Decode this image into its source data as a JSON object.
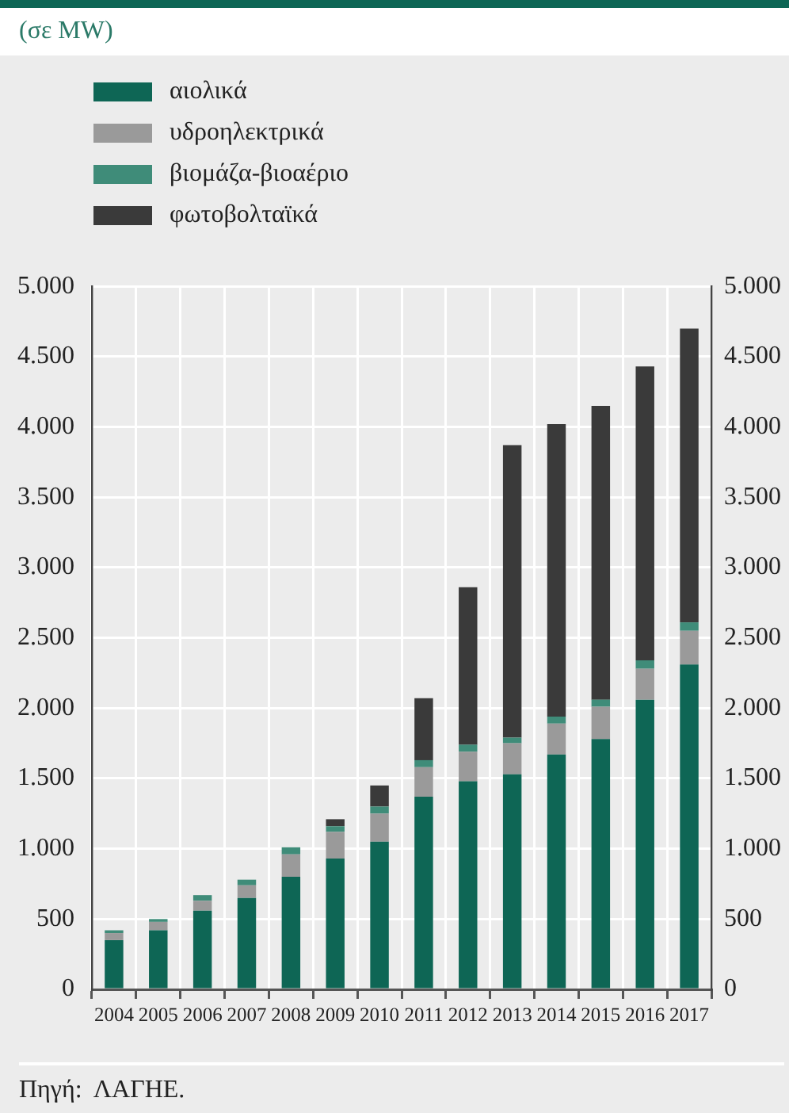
{
  "chart_data": {
    "type": "bar",
    "subtitle": "(σε MW)",
    "categories": [
      "2004",
      "2005",
      "2006",
      "2007",
      "2008",
      "2009",
      "2010",
      "2011",
      "2012",
      "2013",
      "2014",
      "2015",
      "2016",
      "2017"
    ],
    "series": [
      {
        "name": "αιολικά",
        "color": "#0e6655",
        "values": [
          350,
          420,
          560,
          650,
          800,
          930,
          1050,
          1370,
          1480,
          1530,
          1670,
          1780,
          2060,
          2310
        ]
      },
      {
        "name": "υδροηλεκτρικά",
        "color": "#9a9a9a",
        "values": [
          50,
          60,
          70,
          90,
          160,
          190,
          200,
          210,
          210,
          220,
          220,
          230,
          220,
          240
        ]
      },
      {
        "name": "βιομάζα-βιοαέριο",
        "color": "#3f8c79",
        "values": [
          20,
          20,
          40,
          40,
          50,
          40,
          50,
          50,
          50,
          40,
          50,
          50,
          60,
          60
        ]
      },
      {
        "name": "φωτοβολταϊκά",
        "color": "#3a3a3a",
        "values": [
          0,
          0,
          0,
          0,
          0,
          50,
          150,
          440,
          1120,
          2080,
          2080,
          2090,
          2090,
          2090
        ]
      }
    ],
    "stacked": true,
    "ylim": [
      0,
      5000
    ],
    "yticks": [
      {
        "value": 0,
        "label": "0"
      },
      {
        "value": 500,
        "label": "500"
      },
      {
        "value": 1000,
        "label": "1.000"
      },
      {
        "value": 1500,
        "label": "1.500"
      },
      {
        "value": 2000,
        "label": "2.000"
      },
      {
        "value": 2500,
        "label": "2.500"
      },
      {
        "value": 3000,
        "label": "3.000"
      },
      {
        "value": 3500,
        "label": "3.500"
      },
      {
        "value": 4000,
        "label": "4.000"
      },
      {
        "value": 4500,
        "label": "4.500"
      },
      {
        "value": 5000,
        "label": "5.000"
      }
    ],
    "y2lim": [
      0,
      5000
    ],
    "y2ticks": [
      {
        "value": 0,
        "label": "0"
      },
      {
        "value": 500,
        "label": "500"
      },
      {
        "value": 1000,
        "label": "1.000"
      },
      {
        "value": 1500,
        "label": "1.500"
      },
      {
        "value": 2000,
        "label": "2.000"
      },
      {
        "value": 2500,
        "label": "2.500"
      },
      {
        "value": 3000,
        "label": "3.000"
      },
      {
        "value": 3500,
        "label": "3.500"
      },
      {
        "value": 4000,
        "label": "4.000"
      },
      {
        "value": 4500,
        "label": "4.500"
      },
      {
        "value": 5000,
        "label": "5.000"
      }
    ],
    "grid": true,
    "legend": "top left",
    "annotations": [
      "Πηγή:  ΛΑΓΗΕ."
    ]
  }
}
